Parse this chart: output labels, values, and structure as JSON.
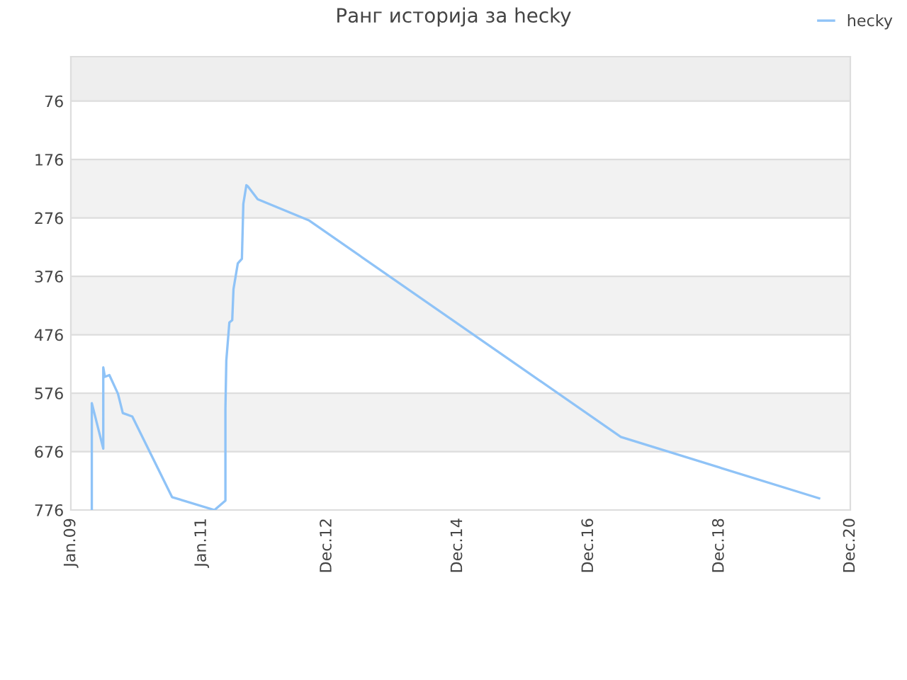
{
  "chart_data": {
    "type": "line",
    "title": "Ранг историја за hecky",
    "x": [
      "2009-04-28",
      "2009-04-28",
      "2009-07-01",
      "2009-07-01",
      "2009-07-10",
      "2009-08-04",
      "2009-09-21",
      "2009-10-18",
      "2009-12-10",
      "2010-07-20",
      "2011-03-14",
      "2011-05-14",
      "2011-05-14",
      "2011-05-19",
      "2011-06-05",
      "2011-06-21",
      "2011-06-28",
      "2011-07-22",
      "2011-08-14",
      "2011-08-22",
      "2011-09-08",
      "2011-09-16",
      "2011-11-10",
      "2012-08-21",
      "2017-05-30",
      "2020-06-10"
    ],
    "series": [
      {
        "name": "hecky",
        "color": "#8fc3f7",
        "values": [
          776,
          593,
          671,
          532,
          548,
          545,
          577,
          610,
          616,
          754,
          776,
          760,
          602,
          520,
          455,
          451,
          398,
          354,
          346,
          252,
          220,
          222,
          244,
          280,
          651,
          756
        ]
      }
    ],
    "xlim": [
      "2009-01-01",
      "2020-12-01"
    ],
    "xticks": [
      {
        "value": "2009-01-01",
        "label": "Jan.09"
      },
      {
        "value": "2011-01-01",
        "label": "Jan.11"
      },
      {
        "value": "2012-12-01",
        "label": "Dec.12"
      },
      {
        "value": "2014-12-01",
        "label": "Dec.14"
      },
      {
        "value": "2016-12-01",
        "label": "Dec.16"
      },
      {
        "value": "2018-12-01",
        "label": "Dec.18"
      },
      {
        "value": "2020-12-01",
        "label": "Dec.20"
      }
    ],
    "ylim": [
      776,
      0
    ],
    "yticks": [
      76,
      176,
      276,
      376,
      476,
      576,
      676,
      776
    ],
    "bands": [
      {
        "axis": "y",
        "from": 0,
        "to": 76,
        "color": "#eeeeee"
      },
      {
        "axis": "y",
        "from": 176,
        "to": 276,
        "color": "#f2f2f2"
      },
      {
        "axis": "y",
        "from": 376,
        "to": 476,
        "color": "#f2f2f2"
      },
      {
        "axis": "y",
        "from": 576,
        "to": 676,
        "color": "#f2f2f2"
      }
    ],
    "grid": "y",
    "legend": "top right",
    "marker": "none",
    "line_style": "solid"
  }
}
